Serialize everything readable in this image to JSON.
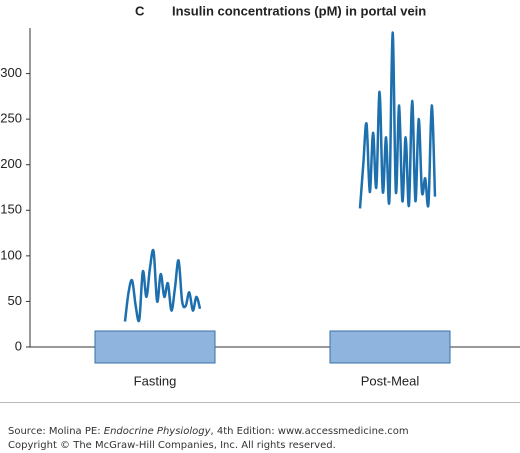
{
  "chart_data": {
    "type": "line",
    "panel": "C",
    "title": "Insulin concentrations (pM) in portal vein",
    "categories": [
      "Fasting",
      "Post-Meal"
    ],
    "traces": [
      {
        "values": [
          28,
          60,
          73,
          45,
          30,
          83,
          55,
          87,
          105,
          50,
          80,
          55,
          70,
          40,
          65,
          95,
          50,
          45,
          60,
          40,
          55,
          42
        ]
      },
      {
        "values": [
          152,
          200,
          245,
          170,
          235,
          175,
          280,
          170,
          230,
          160,
          345,
          170,
          265,
          160,
          230,
          155,
          270,
          160,
          250,
          170,
          185,
          157,
          265,
          165
        ]
      }
    ],
    "color": "#1d6fae",
    "box_color": "#8fb5de",
    "ylim": [
      0,
      350
    ],
    "yticks": [
      0,
      50,
      100,
      150,
      200,
      250,
      300
    ]
  },
  "footer": {
    "source": [
      "Source: Molina PE: ",
      "Endocrine Physiology",
      ", 4th Edition: www.accessmedicine.com"
    ],
    "copyright": "Copyright © The McGraw-Hill Companies, Inc. All rights reserved."
  }
}
